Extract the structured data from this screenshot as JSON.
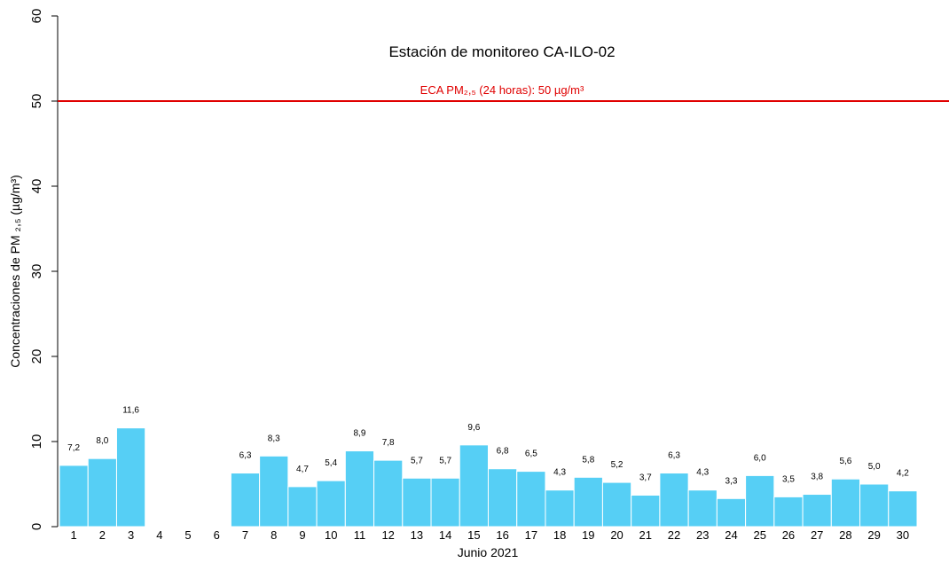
{
  "chart_data": {
    "type": "bar",
    "title": "Estación de monitoreo  CA-ILO-02",
    "x_label": "Junio 2021",
    "y_label": "Concentraciones de PM ₂,₅ (µg/m³)",
    "categories": [
      "1",
      "2",
      "3",
      "4",
      "5",
      "6",
      "7",
      "8",
      "9",
      "10",
      "11",
      "12",
      "13",
      "14",
      "15",
      "16",
      "17",
      "18",
      "19",
      "20",
      "21",
      "22",
      "23",
      "24",
      "25",
      "26",
      "27",
      "28",
      "29",
      "30"
    ],
    "values": [
      7.2,
      8.0,
      11.6,
      null,
      null,
      null,
      6.3,
      8.3,
      4.7,
      5.4,
      8.9,
      7.8,
      5.7,
      5.7,
      9.6,
      6.8,
      6.5,
      4.3,
      5.8,
      5.2,
      3.7,
      6.3,
      4.3,
      3.3,
      6.0,
      3.5,
      3.8,
      5.6,
      5.0,
      4.2
    ],
    "value_labels": [
      "7,2",
      "8,0",
      "11,6",
      null,
      null,
      null,
      "6,3",
      "8,3",
      "4,7",
      "5,4",
      "8,9",
      "7,8",
      "5,7",
      "5,7",
      "9,6",
      "6,8",
      "6,5",
      "4,3",
      "5,8",
      "5,2",
      "3,7",
      "6,3",
      "4,3",
      "3,3",
      "6,0",
      "3,5",
      "3,8",
      "5,6",
      "5,0",
      "4,2"
    ],
    "color": "#56cff5",
    "ylim": [
      0,
      60
    ],
    "yticks": [
      0,
      10,
      20,
      30,
      40,
      50,
      60
    ],
    "reference_line": {
      "value": 50,
      "label": "ECA PM₂,₅ (24 horas): 50 µg/m³",
      "color": "#e00000"
    }
  }
}
